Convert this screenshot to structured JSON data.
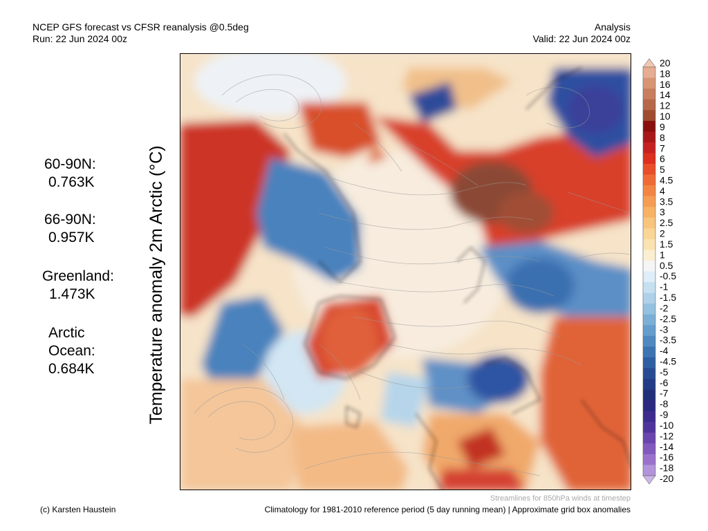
{
  "header": {
    "title_line1": "NCEP GFS forecast vs CFSR reanalysis @0.5deg",
    "title_line2": "Run: 22 Jun 2024 00z",
    "right_line1": "Analysis",
    "right_line2": "Valid: 22 Jun 2024 00z"
  },
  "axis_label": "Temperature anomaly 2m Arctic (°C)",
  "stats": [
    {
      "label": "60-90N:",
      "value": "0.763K"
    },
    {
      "label": "66-90N:",
      "value": "0.957K"
    },
    {
      "label": "Greenland:",
      "value": "1.473K"
    },
    {
      "label": "Arctic Ocean:",
      "value": "0.684K"
    }
  ],
  "colorbar": {
    "labels": [
      "20",
      "18",
      "16",
      "14",
      "12",
      "10",
      "9",
      "8",
      "7",
      "6",
      "5",
      "4.5",
      "4",
      "3.5",
      "3",
      "2.5",
      "2",
      "1.5",
      "1",
      "0.5",
      "-0.5",
      "-1",
      "-1.5",
      "-2",
      "-2.5",
      "-3",
      "-3.5",
      "-4",
      "-4.5",
      "-5",
      "-6",
      "-7",
      "-8",
      "-9",
      "-10",
      "-12",
      "-14",
      "-16",
      "-18",
      "-20"
    ],
    "colors": [
      "#f2c7b2",
      "#e6ad92",
      "#d89574",
      "#c77d5e",
      "#b5684a",
      "#a04c30",
      "#8a1010",
      "#a81818",
      "#c62222",
      "#dc3020",
      "#e84e2a",
      "#ef6a36",
      "#f38544",
      "#f59d55",
      "#f7b266",
      "#f8c57e",
      "#f9d596",
      "#fae3b0",
      "#fbefd2",
      "#f5f5f5",
      "#dfeef8",
      "#c6e0f1",
      "#aed1e9",
      "#95c1e0",
      "#7cafd6",
      "#659dcc",
      "#4f89c0",
      "#3c74b2",
      "#2f5fa3",
      "#274c93",
      "#233c86",
      "#22307a",
      "#2c2a80",
      "#3d2c8e",
      "#51339c",
      "#6a45ad",
      "#8259bd",
      "#9a72cc",
      "#b394db",
      "#ccb6ea"
    ]
  },
  "footer": {
    "credit": "(c) Karsten Haustein",
    "streamlines_note": "Streamlines for 850hPa winds at timestep",
    "climatology": "Climatology for 1981-2010 reference period (5 day running mean) | Approximate grid box anomalies"
  }
}
